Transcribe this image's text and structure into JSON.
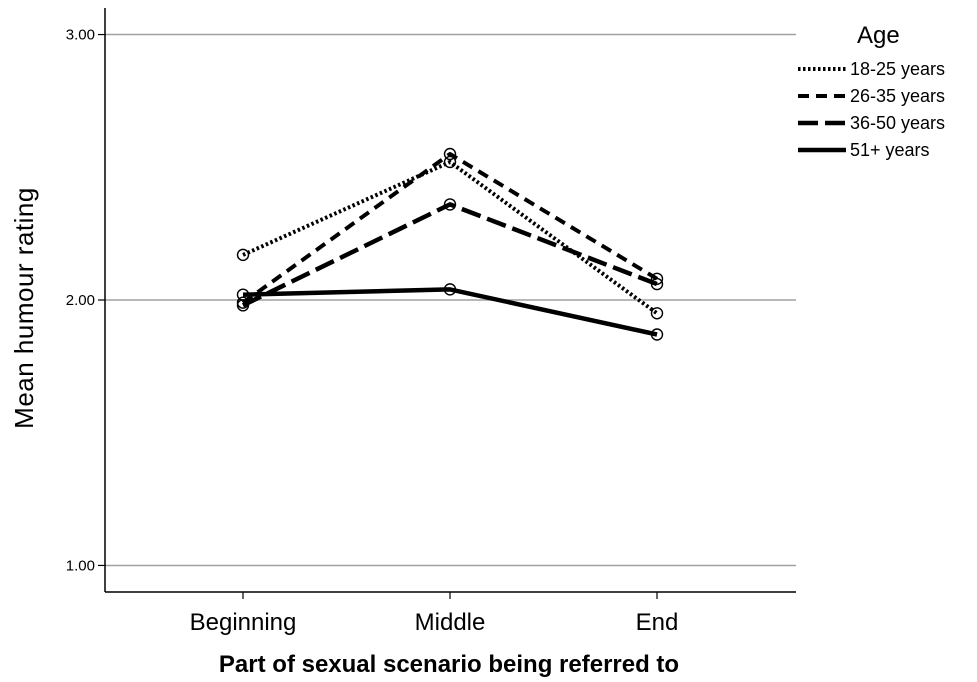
{
  "chart_data": {
    "type": "line",
    "xlabel": "Part of sexual scenario being referred to",
    "ylabel": "Mean humour rating",
    "categories": [
      "Beginning",
      "Middle",
      "End"
    ],
    "ylim": [
      0.9,
      3.1
    ],
    "yticks": [
      1.0,
      2.0,
      3.0
    ],
    "ytick_labels": [
      "1.00",
      "2.00",
      "3.00"
    ],
    "grid": "horizontal at y ticks",
    "legend": {
      "title": "Age",
      "placement": "top-right outside plot"
    },
    "series": [
      {
        "name": "18-25 years",
        "style": "dotted",
        "values": [
          2.17,
          2.52,
          1.95
        ]
      },
      {
        "name": "26-35 years",
        "style": "dashed",
        "values": [
          1.99,
          2.55,
          2.08
        ]
      },
      {
        "name": "36-50 years",
        "style": "long-dashed",
        "values": [
          1.98,
          2.36,
          2.06
        ]
      },
      {
        "name": "51+ years",
        "style": "solid",
        "values": [
          2.02,
          2.04,
          1.87
        ]
      }
    ]
  }
}
